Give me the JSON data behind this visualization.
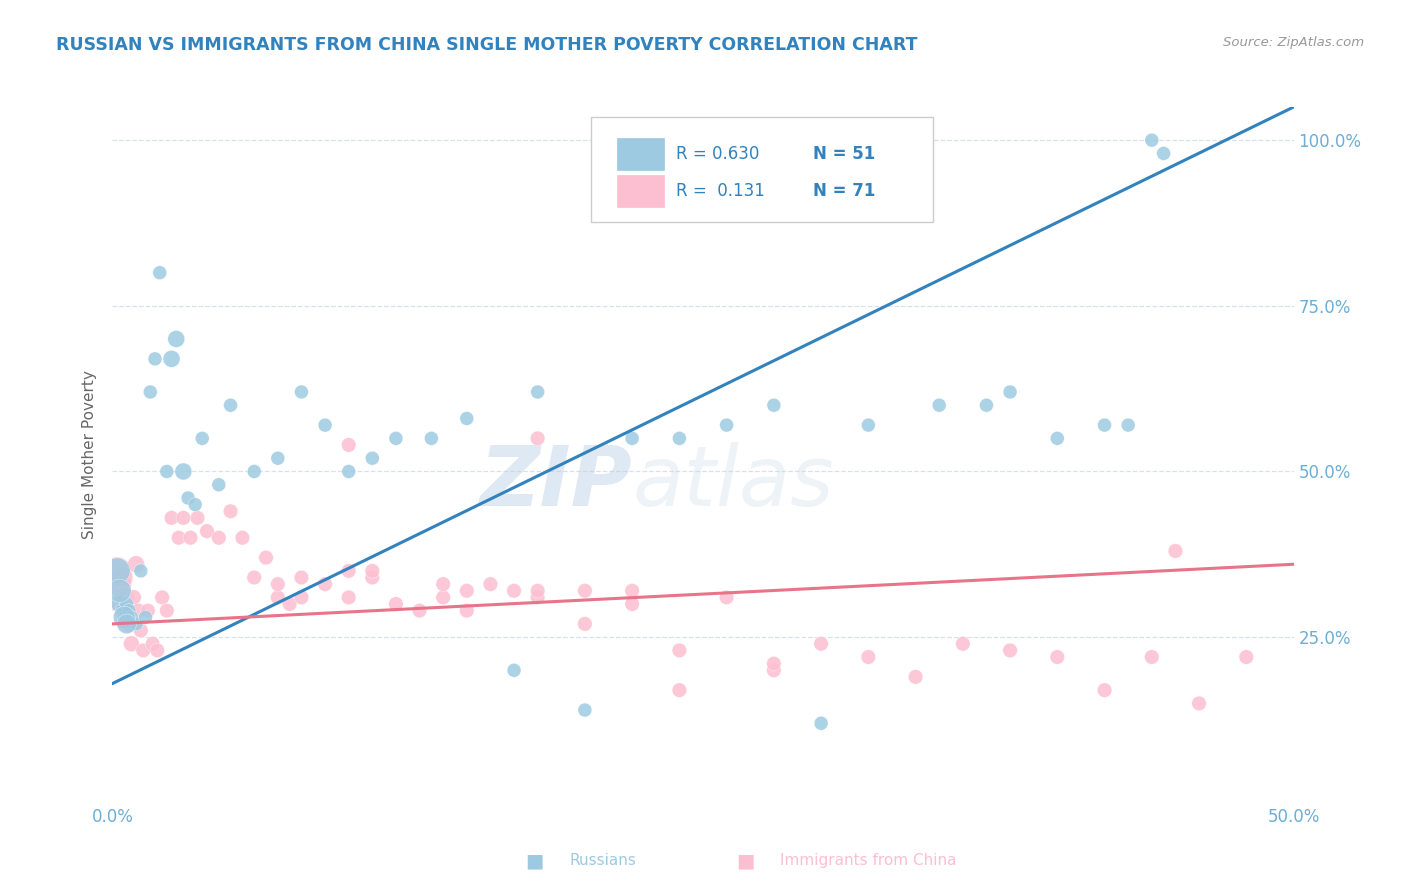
{
  "title": "RUSSIAN VS IMMIGRANTS FROM CHINA SINGLE MOTHER POVERTY CORRELATION CHART",
  "source_text": "Source: ZipAtlas.com",
  "ylabel": "Single Mother Poverty",
  "legend_labels": [
    "Russians",
    "Immigrants from China"
  ],
  "legend_r_values": [
    "0.630",
    "0.131"
  ],
  "legend_n_values": [
    "51",
    "71"
  ],
  "blue_color": "#9ecae1",
  "pink_color": "#fcbfd2",
  "blue_line_color": "#3182bd",
  "pink_line_color": "#e8748a",
  "title_color": "#3182bd",
  "axis_tick_color": "#6baed6",
  "watermark_zip": "ZIP",
  "watermark_atlas": "atlas",
  "blue_scatter_x": [
    0.3,
    0.4,
    0.5,
    0.6,
    0.7,
    0.8,
    1.0,
    1.2,
    1.4,
    1.6,
    1.8,
    2.0,
    2.3,
    2.5,
    2.7,
    3.0,
    3.2,
    3.5,
    3.8,
    4.5,
    5.0,
    6.0,
    7.0,
    8.0,
    9.0,
    10.0,
    11.0,
    12.0,
    13.5,
    15.0,
    17.0,
    18.0,
    20.0,
    22.0,
    24.0,
    26.0,
    28.0,
    30.0,
    32.0,
    35.0,
    37.0,
    38.0,
    40.0,
    42.0,
    43.0,
    44.0,
    44.5,
    0.2,
    0.3,
    0.5,
    0.6
  ],
  "blue_scatter_y": [
    30,
    29,
    28,
    30,
    29,
    28,
    27,
    35,
    28,
    62,
    67,
    80,
    50,
    67,
    70,
    50,
    46,
    45,
    55,
    48,
    60,
    50,
    52,
    62,
    57,
    50,
    52,
    55,
    55,
    58,
    20,
    62,
    14,
    55,
    55,
    57,
    60,
    12,
    57,
    60,
    60,
    62,
    55,
    57,
    57,
    100,
    98,
    35,
    32,
    28,
    27
  ],
  "blue_scatter_s": [
    150,
    100,
    100,
    100,
    100,
    100,
    100,
    100,
    100,
    100,
    100,
    100,
    100,
    150,
    150,
    150,
    100,
    100,
    100,
    100,
    100,
    100,
    100,
    100,
    100,
    100,
    100,
    100,
    100,
    100,
    100,
    100,
    100,
    100,
    100,
    100,
    100,
    100,
    100,
    100,
    100,
    100,
    100,
    100,
    100,
    100,
    100,
    350,
    280,
    250,
    200
  ],
  "pink_scatter_x": [
    0.1,
    0.2,
    0.3,
    0.4,
    0.5,
    0.6,
    0.7,
    0.8,
    0.9,
    1.0,
    1.1,
    1.2,
    1.3,
    1.5,
    1.7,
    1.9,
    2.1,
    2.3,
    2.5,
    2.8,
    3.0,
    3.3,
    3.6,
    4.0,
    4.5,
    5.0,
    5.5,
    6.0,
    6.5,
    7.0,
    7.5,
    8.0,
    9.0,
    10.0,
    11.0,
    12.0,
    13.0,
    14.0,
    15.0,
    16.0,
    17.0,
    18.0,
    20.0,
    22.0,
    24.0,
    26.0,
    28.0,
    30.0,
    32.0,
    34.0,
    36.0,
    38.0,
    40.0,
    42.0,
    44.0,
    46.0,
    48.0,
    10.0,
    11.0,
    45.0,
    18.0,
    20.0,
    24.0,
    7.0,
    8.0,
    10.0,
    14.0,
    15.0,
    18.0,
    22.0,
    28.0
  ],
  "pink_scatter_y": [
    30,
    35,
    33,
    34,
    31,
    29,
    27,
    24,
    31,
    36,
    29,
    26,
    23,
    29,
    24,
    23,
    31,
    29,
    43,
    40,
    43,
    40,
    43,
    41,
    40,
    44,
    40,
    34,
    37,
    31,
    30,
    31,
    33,
    31,
    34,
    30,
    29,
    31,
    29,
    33,
    32,
    31,
    27,
    30,
    23,
    31,
    20,
    24,
    22,
    19,
    24,
    23,
    22,
    17,
    22,
    15,
    22,
    35,
    35,
    38,
    55,
    32,
    17,
    33,
    34,
    54,
    33,
    32,
    32,
    32,
    21
  ],
  "pink_scatter_s": [
    100,
    400,
    300,
    250,
    220,
    180,
    150,
    130,
    120,
    150,
    110,
    110,
    110,
    110,
    110,
    110,
    110,
    110,
    110,
    110,
    110,
    110,
    110,
    110,
    110,
    110,
    110,
    110,
    110,
    110,
    110,
    110,
    110,
    110,
    110,
    110,
    110,
    110,
    110,
    110,
    110,
    110,
    110,
    110,
    110,
    110,
    110,
    110,
    110,
    110,
    110,
    110,
    110,
    110,
    110,
    110,
    110,
    110,
    110,
    110,
    110,
    110,
    110,
    110,
    110,
    110,
    110,
    110,
    110,
    110,
    110
  ],
  "blue_line_x": [
    0,
    50
  ],
  "blue_line_y": [
    18,
    105
  ],
  "pink_line_x": [
    0,
    50
  ],
  "pink_line_y": [
    27,
    36
  ],
  "xmin": 0,
  "xmax": 50,
  "ymin": 0,
  "ymax": 105,
  "ytick_positions": [
    25,
    50,
    75,
    100
  ],
  "ytick_labels": [
    "25.0%",
    "50.0%",
    "75.0%",
    "100.0%"
  ],
  "xtick_positions": [
    0,
    50
  ],
  "xtick_labels": [
    "0.0%",
    "50.0%"
  ],
  "grid_color": "#d0d8e8",
  "background_color": "#ffffff"
}
